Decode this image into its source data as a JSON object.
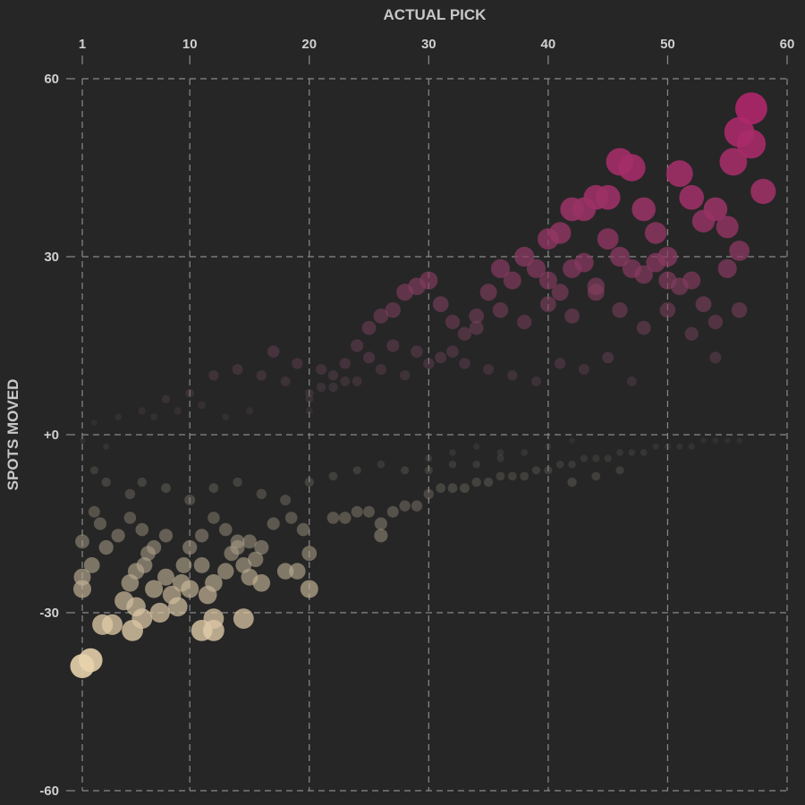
{
  "chart_data": {
    "type": "scatter",
    "title": "",
    "xlabel": "ACTUAL PICK",
    "ylabel": "SPOTS MOVED",
    "xlim": [
      1,
      60
    ],
    "ylim": [
      -60,
      60
    ],
    "x_ticks": [
      1,
      10,
      20,
      30,
      40,
      50,
      60
    ],
    "y_ticks": [
      60,
      30,
      0,
      -30,
      -60
    ],
    "x_tick_labels": [
      "1",
      "10",
      "20",
      "30",
      "40",
      "50",
      "60"
    ],
    "y_tick_labels": [
      "60",
      "30",
      "+0",
      "-30",
      "-60"
    ],
    "x_axis_position": "top",
    "grid": true,
    "legend": false,
    "colors": {
      "background": "#262626",
      "positive": "#b0276b",
      "neutral": "#555555",
      "negative": "#e8d3ad",
      "grid": "#8a8a8a",
      "text": "#d0d0d0"
    },
    "points": [
      [
        1,
        -39
      ],
      [
        1.7,
        -38
      ],
      [
        1,
        -26
      ],
      [
        1,
        -24
      ],
      [
        1,
        -18
      ],
      [
        1.8,
        -22
      ],
      [
        2.7,
        -32
      ],
      [
        3.5,
        -32
      ],
      [
        4.5,
        -28
      ],
      [
        5.2,
        -33
      ],
      [
        5.5,
        -29
      ],
      [
        6,
        -31
      ],
      [
        5,
        -25
      ],
      [
        5.5,
        -23
      ],
      [
        6.2,
        -22
      ],
      [
        6.5,
        -20
      ],
      [
        7,
        -26
      ],
      [
        7.5,
        -30
      ],
      [
        8,
        -24
      ],
      [
        8.5,
        -27
      ],
      [
        9,
        -29
      ],
      [
        9.3,
        -25
      ],
      [
        9.5,
        -22
      ],
      [
        10,
        -26
      ],
      [
        8,
        -17
      ],
      [
        7,
        -19
      ],
      [
        6,
        -16
      ],
      [
        5,
        -14
      ],
      [
        4,
        -17
      ],
      [
        3,
        -19
      ],
      [
        2.5,
        -15
      ],
      [
        2,
        -13
      ],
      [
        11,
        -33
      ],
      [
        12,
        -33
      ],
      [
        12,
        -31
      ],
      [
        11.5,
        -27
      ],
      [
        12,
        -25
      ],
      [
        11,
        -22
      ],
      [
        13,
        -23
      ],
      [
        13.5,
        -20
      ],
      [
        14,
        -18
      ],
      [
        14.5,
        -22
      ],
      [
        15,
        -24
      ],
      [
        15.5,
        -21
      ],
      [
        15,
        -18
      ],
      [
        16,
        -25
      ],
      [
        14.5,
        -31
      ],
      [
        10,
        -19
      ],
      [
        11,
        -17
      ],
      [
        12,
        -14
      ],
      [
        13,
        -16
      ],
      [
        14,
        -19
      ],
      [
        16,
        -19
      ],
      [
        18,
        -23
      ],
      [
        19,
        -23
      ],
      [
        20,
        -26
      ],
      [
        20,
        -20
      ],
      [
        19.5,
        -16
      ],
      [
        18.5,
        -14
      ],
      [
        17,
        -15
      ],
      [
        22,
        -14
      ],
      [
        23,
        -14
      ],
      [
        24,
        -13
      ],
      [
        25,
        -13
      ],
      [
        26,
        -15
      ],
      [
        26,
        -17
      ],
      [
        27,
        -13
      ],
      [
        28,
        -12
      ],
      [
        29,
        -12
      ],
      [
        30,
        -10
      ],
      [
        31,
        -9
      ],
      [
        32,
        -9
      ],
      [
        33,
        -9
      ],
      [
        34,
        -8
      ],
      [
        35,
        -8
      ],
      [
        36,
        -7
      ],
      [
        37,
        -7
      ],
      [
        38,
        -7
      ],
      [
        39,
        -6
      ],
      [
        40,
        -6
      ],
      [
        41,
        -5
      ],
      [
        42,
        -5
      ],
      [
        43,
        -4
      ],
      [
        44,
        -4
      ],
      [
        45,
        -4
      ],
      [
        46,
        -3
      ],
      [
        47,
        -3
      ],
      [
        48,
        -3
      ],
      [
        49,
        -2
      ],
      [
        50,
        -2
      ],
      [
        51,
        -2
      ],
      [
        52,
        -2
      ],
      [
        53,
        -1
      ],
      [
        54,
        -1
      ],
      [
        55,
        -1
      ],
      [
        56,
        -1
      ],
      [
        20,
        4
      ],
      [
        20,
        6
      ],
      [
        21,
        8
      ],
      [
        22,
        10
      ],
      [
        23,
        12
      ],
      [
        24,
        15
      ],
      [
        25,
        18
      ],
      [
        26,
        20
      ],
      [
        27,
        21
      ],
      [
        28,
        24
      ],
      [
        29,
        25
      ],
      [
        30,
        26
      ],
      [
        31,
        22
      ],
      [
        32,
        19
      ],
      [
        33,
        17
      ],
      [
        34,
        20
      ],
      [
        35,
        24
      ],
      [
        36,
        28
      ],
      [
        37,
        26
      ],
      [
        38,
        30
      ],
      [
        39,
        28
      ],
      [
        40,
        33
      ],
      [
        41,
        34
      ],
      [
        42,
        38
      ],
      [
        43,
        38
      ],
      [
        44,
        40
      ],
      [
        45,
        40
      ],
      [
        46,
        46
      ],
      [
        47,
        45
      ],
      [
        48,
        38
      ],
      [
        49,
        34
      ],
      [
        50,
        30
      ],
      [
        51,
        44
      ],
      [
        52,
        40
      ],
      [
        53,
        36
      ],
      [
        54,
        38
      ],
      [
        55,
        35
      ],
      [
        55.5,
        46
      ],
      [
        56,
        51
      ],
      [
        57,
        55
      ],
      [
        57,
        49
      ],
      [
        58,
        41
      ],
      [
        40,
        26
      ],
      [
        41,
        24
      ],
      [
        42,
        28
      ],
      [
        43,
        29
      ],
      [
        44,
        25
      ],
      [
        45,
        33
      ],
      [
        46,
        30
      ],
      [
        47,
        28
      ],
      [
        48,
        27
      ],
      [
        49,
        29
      ],
      [
        50,
        26
      ],
      [
        51,
        25
      ],
      [
        52,
        26
      ],
      [
        53,
        22
      ],
      [
        54,
        19
      ],
      [
        55,
        28
      ],
      [
        56,
        31
      ],
      [
        56,
        21
      ],
      [
        54,
        13
      ],
      [
        52,
        17
      ],
      [
        50,
        21
      ],
      [
        48,
        18
      ],
      [
        46,
        21
      ],
      [
        44,
        24
      ],
      [
        42,
        20
      ],
      [
        40,
        22
      ],
      [
        38,
        19
      ],
      [
        36,
        21
      ],
      [
        34,
        18
      ],
      [
        32,
        14
      ],
      [
        30,
        12
      ],
      [
        28,
        10
      ],
      [
        26,
        11
      ],
      [
        24,
        9
      ],
      [
        22,
        8
      ],
      [
        20,
        7
      ],
      [
        18,
        9
      ],
      [
        16,
        10
      ],
      [
        14,
        11
      ],
      [
        12,
        10
      ],
      [
        10,
        7
      ],
      [
        8,
        6
      ],
      [
        6,
        4
      ],
      [
        4,
        3
      ],
      [
        2,
        2
      ],
      [
        5,
        -10
      ],
      [
        3,
        -8
      ],
      [
        2,
        -6
      ],
      [
        6,
        -8
      ],
      [
        8,
        -9
      ],
      [
        10,
        -11
      ],
      [
        12,
        -9
      ],
      [
        14,
        -8
      ],
      [
        16,
        -10
      ],
      [
        18,
        -11
      ],
      [
        20,
        -8
      ],
      [
        22,
        -7
      ],
      [
        24,
        -6
      ],
      [
        26,
        -5
      ],
      [
        28,
        -6
      ],
      [
        30,
        -4
      ],
      [
        32,
        -3
      ],
      [
        34,
        -5
      ],
      [
        36,
        -4
      ],
      [
        38,
        -3
      ],
      [
        40,
        -2
      ],
      [
        42,
        -1
      ],
      [
        17,
        14
      ],
      [
        19,
        12
      ],
      [
        21,
        11
      ],
      [
        23,
        9
      ],
      [
        25,
        13
      ],
      [
        27,
        15
      ],
      [
        29,
        14
      ],
      [
        31,
        13
      ],
      [
        33,
        12
      ],
      [
        35,
        11
      ],
      [
        37,
        10
      ],
      [
        39,
        9
      ],
      [
        41,
        12
      ],
      [
        43,
        11
      ],
      [
        45,
        13
      ],
      [
        47,
        9
      ],
      [
        36,
        -3
      ],
      [
        34,
        -2
      ],
      [
        32,
        -5
      ],
      [
        30,
        -6
      ],
      [
        15,
        4
      ],
      [
        13,
        3
      ],
      [
        11,
        5
      ],
      [
        9,
        4
      ],
      [
        7,
        3
      ],
      [
        3,
        -2
      ],
      [
        1,
        -1
      ],
      [
        44,
        -7
      ],
      [
        46,
        -6
      ],
      [
        42,
        -8
      ]
    ]
  }
}
